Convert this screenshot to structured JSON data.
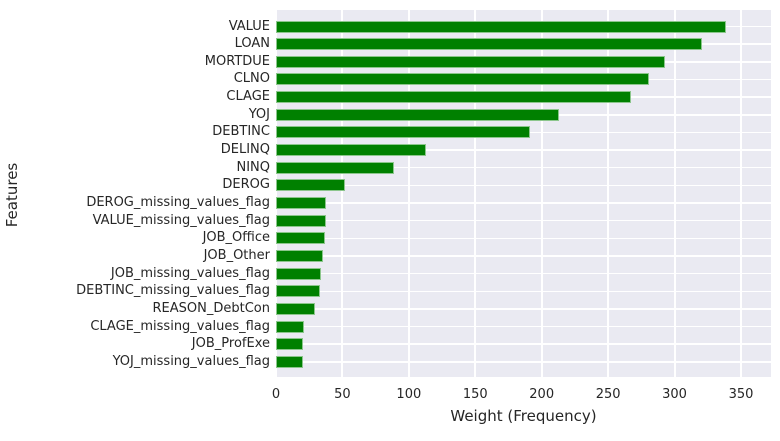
{
  "chart_data": {
    "type": "bar",
    "orientation": "horizontal",
    "title": "",
    "xlabel": "Weight (Frequency)",
    "ylabel": "Features",
    "xticks": [
      0,
      50,
      100,
      150,
      200,
      250,
      300,
      350
    ],
    "xlim": [
      0,
      372
    ],
    "grid": true,
    "legend": null,
    "bar_color": "#008000",
    "plot_background": "#eaeaf2",
    "grid_color": "#ffffff",
    "text_color": "#262626",
    "categories": [
      "VALUE",
      "LOAN",
      "MORTDUE",
      "CLNO",
      "CLAGE",
      "YOJ",
      "DEBTINC",
      "DELINQ",
      "NINQ",
      "DEROG",
      "DEROG_missing_values_flag",
      "VALUE_missing_values_flag",
      "JOB_Office",
      "JOB_Other",
      "JOB_missing_values_flag",
      "DEBTINC_missing_values_flag",
      "REASON_DebtCon",
      "CLAGE_missing_values_flag",
      "JOB_ProfExe",
      "YOJ_missing_values_flag"
    ],
    "values": [
      339,
      321,
      293,
      281,
      267,
      213,
      191,
      113,
      89,
      52,
      38,
      38,
      37,
      35,
      34,
      33,
      29,
      21,
      20,
      20
    ]
  }
}
